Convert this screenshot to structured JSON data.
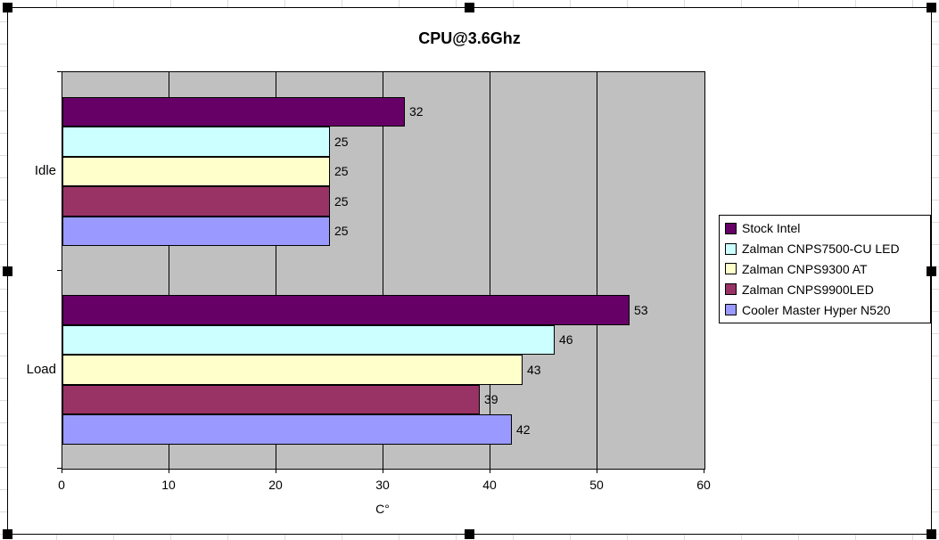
{
  "chart_data": {
    "type": "bar",
    "orientation": "horizontal",
    "title": "CPU@3.6Ghz",
    "xlabel": "C°",
    "categories": [
      "Idle",
      "Load"
    ],
    "series": [
      {
        "name": "Stock Intel",
        "color": "#660066",
        "values": [
          32,
          53
        ]
      },
      {
        "name": "Zalman CNPS7500-CU LED",
        "color": "#CCFFFF",
        "values": [
          25,
          46
        ]
      },
      {
        "name": "Zalman CNPS9300 AT",
        "color": "#FFFFCC",
        "values": [
          25,
          43
        ]
      },
      {
        "name": "Zalman CNPS9900LED",
        "color": "#993366",
        "values": [
          25,
          39
        ]
      },
      {
        "name": "Cooler Master Hyper N520",
        "color": "#9999FF",
        "values": [
          25,
          42
        ]
      }
    ],
    "xlim": [
      0,
      60
    ],
    "xticks": [
      0,
      10,
      20,
      30,
      40,
      50,
      60
    ],
    "grid": true,
    "legend_position": "right",
    "plot_background": "#C0C0C0",
    "data_labels": true,
    "chart_selected": true
  }
}
